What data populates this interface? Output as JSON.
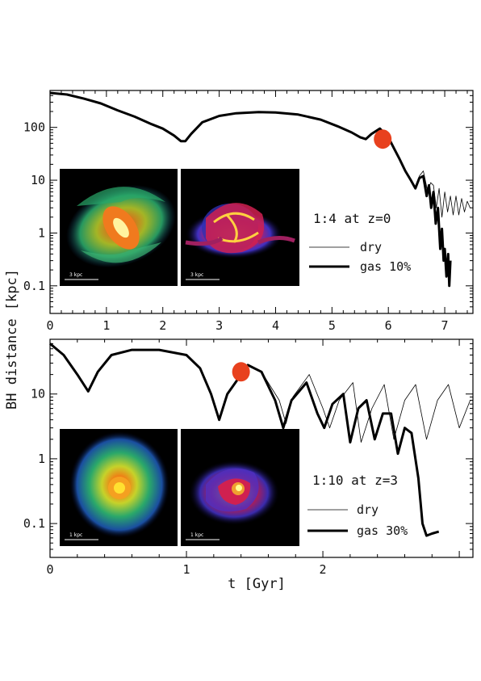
{
  "shared": {
    "ylabel": "BH distance [kpc]",
    "xlabel": "t [Gyr]",
    "colors": {
      "marker": "#e8411e",
      "line": "#000000",
      "inset_bg": "#000000"
    }
  },
  "chart_data": [
    {
      "type": "line",
      "panel": "top",
      "annotation": "1:4 at z=0",
      "xlim": [
        0,
        7.5
      ],
      "ylim": [
        0.03,
        500
      ],
      "yscale": "log",
      "xticks": [
        0,
        1,
        2,
        3,
        4,
        5,
        6,
        7
      ],
      "ytick_labels": [
        "0.1",
        "1",
        "10",
        "100"
      ],
      "series": [
        {
          "name": "dry",
          "style": "thin",
          "x": [
            0,
            0.3,
            0.6,
            0.9,
            1.2,
            1.5,
            1.8,
            2.0,
            2.2,
            2.32,
            2.4,
            2.5,
            2.7,
            3.0,
            3.3,
            3.7,
            4.0,
            4.4,
            4.8,
            5.1,
            5.35,
            5.5,
            5.6,
            5.7,
            5.85,
            6.0,
            6.1,
            6.2,
            6.3,
            6.4,
            6.48,
            6.55,
            6.62,
            6.7,
            6.75,
            6.8,
            6.85,
            6.9,
            6.95,
            7.0,
            7.05,
            7.1,
            7.15,
            7.2,
            7.25,
            7.3,
            7.35,
            7.4,
            7.45
          ],
          "y": [
            450,
            420,
            350,
            285,
            210,
            160,
            115,
            95,
            70,
            55,
            55,
            75,
            125,
            165,
            185,
            195,
            192,
            175,
            140,
            105,
            80,
            65,
            60,
            75,
            95,
            65,
            40,
            25,
            15,
            10,
            7.5,
            12,
            15,
            6,
            9,
            8,
            3,
            7,
            2,
            6,
            2.5,
            5,
            2.2,
            5,
            2.2,
            4.5,
            2.5,
            4,
            3
          ]
        },
        {
          "name": "gas 10%",
          "style": "thick",
          "x": [
            0,
            0.3,
            0.6,
            0.9,
            1.2,
            1.5,
            1.8,
            2.0,
            2.2,
            2.32,
            2.4,
            2.5,
            2.7,
            3.0,
            3.3,
            3.7,
            4.0,
            4.4,
            4.8,
            5.1,
            5.35,
            5.5,
            5.6,
            5.7,
            5.85,
            6.0,
            6.1,
            6.2,
            6.3,
            6.4,
            6.48,
            6.55,
            6.62,
            6.68,
            6.72,
            6.76,
            6.8,
            6.84,
            6.88,
            6.92,
            6.95,
            6.98,
            7.0,
            7.03,
            7.06,
            7.08,
            7.1
          ],
          "y": [
            450,
            420,
            350,
            285,
            210,
            160,
            115,
            95,
            70,
            55,
            55,
            75,
            125,
            165,
            185,
            195,
            192,
            175,
            140,
            105,
            80,
            65,
            60,
            75,
            95,
            65,
            40,
            25,
            15,
            10,
            7,
            11,
            12,
            5,
            8,
            3,
            6,
            1.5,
            3,
            0.5,
            1.2,
            0.3,
            0.5,
            0.15,
            0.4,
            0.1,
            0.3
          ]
        }
      ],
      "marker": {
        "x": 5.9,
        "y": 60
      },
      "legend": {
        "position": "right",
        "entries": [
          "dry",
          "gas 10%"
        ]
      },
      "insets": [
        {
          "label": "3 kpc",
          "kind": "stellar"
        },
        {
          "label": "3 kpc",
          "kind": "gas"
        }
      ]
    },
    {
      "type": "line",
      "panel": "bottom",
      "annotation": "1:10 at z=3",
      "xlim": [
        0,
        3.1
      ],
      "ylim": [
        0.03,
        70
      ],
      "yscale": "log",
      "xticks": [
        0,
        1,
        2
      ],
      "ytick_labels": [
        "0.1",
        "1",
        "10"
      ],
      "series": [
        {
          "name": "dry",
          "style": "thin",
          "x": [
            0,
            0.1,
            0.2,
            0.28,
            0.35,
            0.45,
            0.6,
            0.8,
            1.0,
            1.1,
            1.18,
            1.24,
            1.3,
            1.45,
            1.55,
            1.68,
            1.73,
            1.78,
            1.9,
            2.0,
            2.05,
            2.12,
            2.22,
            2.28,
            2.36,
            2.45,
            2.52,
            2.6,
            2.68,
            2.76,
            2.84,
            2.92,
            3.0,
            3.08
          ],
          "y": [
            60,
            40,
            20,
            11,
            22,
            40,
            48,
            48,
            40,
            25,
            10,
            4,
            10,
            28,
            22,
            8,
            3.5,
            9,
            20,
            6,
            3,
            8,
            15,
            1.8,
            6,
            14,
            2,
            8,
            14,
            2,
            8,
            14,
            3,
            8
          ]
        },
        {
          "name": "gas 30%",
          "style": "thick",
          "x": [
            0,
            0.1,
            0.2,
            0.28,
            0.35,
            0.45,
            0.6,
            0.8,
            1.0,
            1.1,
            1.18,
            1.24,
            1.3,
            1.45,
            1.55,
            1.65,
            1.71,
            1.77,
            1.88,
            1.96,
            2.01,
            2.07,
            2.15,
            2.2,
            2.26,
            2.32,
            2.38,
            2.44,
            2.5,
            2.55,
            2.6,
            2.65,
            2.7,
            2.73,
            2.76,
            2.8,
            2.85
          ],
          "y": [
            60,
            40,
            20,
            11,
            22,
            40,
            48,
            48,
            40,
            25,
            10,
            4,
            10,
            28,
            22,
            8,
            3,
            8,
            15,
            5,
            3,
            7,
            10,
            1.8,
            6,
            8,
            2,
            5,
            5,
            1.2,
            3,
            2.5,
            0.5,
            0.1,
            0.065,
            0.07,
            0.075
          ]
        }
      ],
      "marker": {
        "x": 1.4,
        "y": 22
      },
      "legend": {
        "position": "bottom-right",
        "entries": [
          "dry",
          "gas 30%"
        ]
      },
      "insets": [
        {
          "label": "1 kpc",
          "kind": "stellar"
        },
        {
          "label": "1 kpc",
          "kind": "gas"
        }
      ]
    }
  ]
}
